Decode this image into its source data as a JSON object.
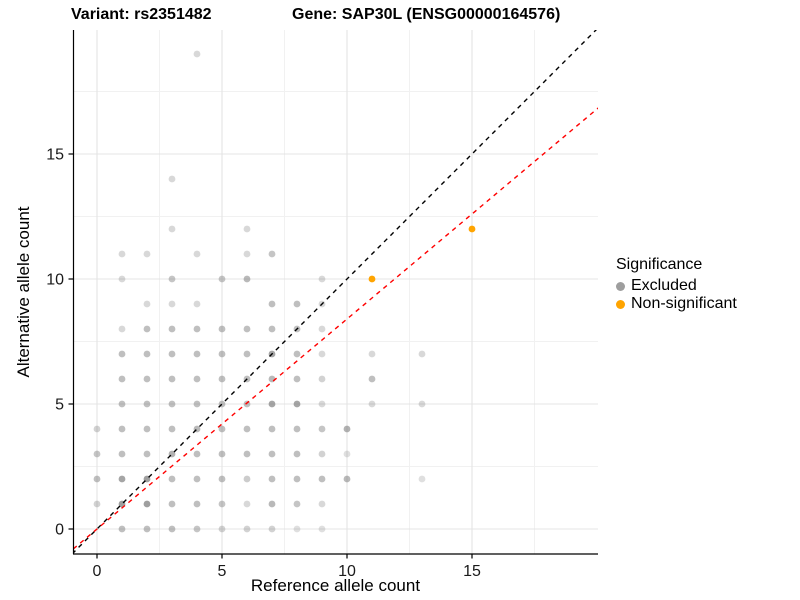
{
  "titles": {
    "variant": "Variant: rs2351482",
    "gene": "Gene: SAP30L (ENSG00000164576)"
  },
  "chart_data": {
    "type": "scatter",
    "xlabel": "Reference allele count",
    "ylabel": "Alternative allele count",
    "xlim": [
      -0.96,
      20.04
    ],
    "ylim": [
      -1.0,
      19.96
    ],
    "x_major_ticks": [
      0,
      5,
      10,
      15
    ],
    "y_major_ticks": [
      0,
      5,
      10,
      15
    ],
    "x_minor_ticks": [
      2.5,
      7.5,
      12.5,
      17.5
    ],
    "y_minor_ticks": [
      2.5,
      7.5,
      12.5,
      17.5
    ],
    "grid": "on",
    "colors": {
      "excluded": "#7f7f7f",
      "non_significant": "#FFA400",
      "identity_line": "#000000",
      "ratio_line": "#FF0000",
      "grid_major": "#e4e4e4",
      "grid_minor": "#f1f1f1",
      "axis": "#000000"
    },
    "series": [
      {
        "name": "Excluded",
        "color": "#7f7f7f",
        "points_xya": [
          [
            1,
            0,
            0.5
          ],
          [
            2,
            0,
            0.5
          ],
          [
            3,
            0,
            0.5
          ],
          [
            4,
            0,
            0.45
          ],
          [
            5,
            0,
            0.35
          ],
          [
            6,
            0,
            0.35
          ],
          [
            7,
            0,
            0.35
          ],
          [
            8,
            0,
            0.25
          ],
          [
            9,
            0,
            0.25
          ],
          [
            0,
            1,
            0.35
          ],
          [
            1,
            1,
            0.75
          ],
          [
            2,
            1,
            0.75
          ],
          [
            3,
            1,
            0.5
          ],
          [
            4,
            1,
            0.5
          ],
          [
            5,
            1,
            0.45
          ],
          [
            6,
            1,
            0.3
          ],
          [
            7,
            1,
            0.55
          ],
          [
            8,
            1,
            0.45
          ],
          [
            9,
            1,
            0.3
          ],
          [
            0,
            2,
            0.5
          ],
          [
            1,
            2,
            0.7
          ],
          [
            2,
            2,
            0.75
          ],
          [
            3,
            2,
            0.5
          ],
          [
            4,
            2,
            0.5
          ],
          [
            5,
            2,
            0.5
          ],
          [
            6,
            2,
            0.4
          ],
          [
            7,
            2,
            0.5
          ],
          [
            8,
            2,
            0.5
          ],
          [
            9,
            2,
            0.5
          ],
          [
            10,
            2,
            0.55
          ],
          [
            13,
            2,
            0.25
          ],
          [
            0,
            3,
            0.45
          ],
          [
            1,
            3,
            0.5
          ],
          [
            2,
            3,
            0.5
          ],
          [
            3,
            3,
            0.6
          ],
          [
            4,
            3,
            0.5
          ],
          [
            5,
            3,
            0.5
          ],
          [
            6,
            3,
            0.5
          ],
          [
            7,
            3,
            0.5
          ],
          [
            8,
            3,
            0.5
          ],
          [
            9,
            3,
            0.35
          ],
          [
            10,
            3,
            0.25
          ],
          [
            0,
            4,
            0.35
          ],
          [
            1,
            4,
            0.5
          ],
          [
            2,
            4,
            0.5
          ],
          [
            3,
            4,
            0.5
          ],
          [
            4,
            4,
            0.55
          ],
          [
            5,
            4,
            0.5
          ],
          [
            6,
            4,
            0.5
          ],
          [
            7,
            4,
            0.5
          ],
          [
            8,
            4,
            0.5
          ],
          [
            9,
            4,
            0.45
          ],
          [
            10,
            4,
            0.6
          ],
          [
            1,
            5,
            0.5
          ],
          [
            2,
            5,
            0.5
          ],
          [
            3,
            5,
            0.5
          ],
          [
            4,
            5,
            0.5
          ],
          [
            5,
            5,
            0.5
          ],
          [
            6,
            5,
            0.5
          ],
          [
            7,
            5,
            0.7
          ],
          [
            8,
            5,
            0.7
          ],
          [
            9,
            5,
            0.3
          ],
          [
            11,
            5,
            0.3
          ],
          [
            13,
            5,
            0.3
          ],
          [
            1,
            6,
            0.5
          ],
          [
            2,
            6,
            0.5
          ],
          [
            3,
            6,
            0.5
          ],
          [
            4,
            6,
            0.5
          ],
          [
            5,
            6,
            0.5
          ],
          [
            6,
            6,
            0.5
          ],
          [
            7,
            6,
            0.55
          ],
          [
            8,
            6,
            0.5
          ],
          [
            9,
            6,
            0.35
          ],
          [
            11,
            6,
            0.5
          ],
          [
            1,
            7,
            0.5
          ],
          [
            2,
            7,
            0.5
          ],
          [
            3,
            7,
            0.5
          ],
          [
            4,
            7,
            0.5
          ],
          [
            5,
            7,
            0.5
          ],
          [
            6,
            7,
            0.5
          ],
          [
            7,
            7,
            0.7
          ],
          [
            8,
            7,
            0.5
          ],
          [
            9,
            7,
            0.3
          ],
          [
            11,
            7,
            0.3
          ],
          [
            13,
            7,
            0.3
          ],
          [
            1,
            8,
            0.3
          ],
          [
            2,
            8,
            0.5
          ],
          [
            3,
            8,
            0.5
          ],
          [
            4,
            8,
            0.5
          ],
          [
            5,
            8,
            0.5
          ],
          [
            6,
            8,
            0.5
          ],
          [
            7,
            8,
            0.5
          ],
          [
            8,
            8,
            0.5
          ],
          [
            9,
            8,
            0.3
          ],
          [
            2,
            9,
            0.3
          ],
          [
            3,
            9,
            0.3
          ],
          [
            4,
            9,
            0.3
          ],
          [
            7,
            9,
            0.5
          ],
          [
            8,
            9,
            0.5
          ],
          [
            9,
            9,
            0.3
          ],
          [
            1,
            10,
            0.3
          ],
          [
            3,
            10,
            0.45
          ],
          [
            5,
            10,
            0.45
          ],
          [
            6,
            10,
            0.55
          ],
          [
            9,
            10,
            0.3
          ],
          [
            1,
            11,
            0.3
          ],
          [
            2,
            11,
            0.3
          ],
          [
            4,
            11,
            0.3
          ],
          [
            6,
            11,
            0.3
          ],
          [
            7,
            11,
            0.45
          ],
          [
            3,
            12,
            0.3
          ],
          [
            6,
            12,
            0.3
          ],
          [
            3,
            14,
            0.3
          ],
          [
            4,
            19,
            0.3
          ]
        ]
      },
      {
        "name": "Non-significant",
        "color": "#FFA400",
        "points_xya": [
          [
            11,
            10,
            1
          ],
          [
            15,
            12,
            1
          ]
        ]
      }
    ],
    "lines": [
      {
        "name": "identity-line",
        "slope": 1.0,
        "intercept": 0,
        "color": "#000000",
        "dashed": true
      },
      {
        "name": "expected-ratio-line",
        "slope": 0.84,
        "intercept": 0,
        "color": "#FF0000",
        "dashed": true
      }
    ],
    "legend": {
      "title": "Significance",
      "position": "right",
      "items": [
        {
          "label": "Excluded",
          "color": "#9e9e9e"
        },
        {
          "label": "Non-significant",
          "color": "#FFA400"
        }
      ]
    }
  }
}
